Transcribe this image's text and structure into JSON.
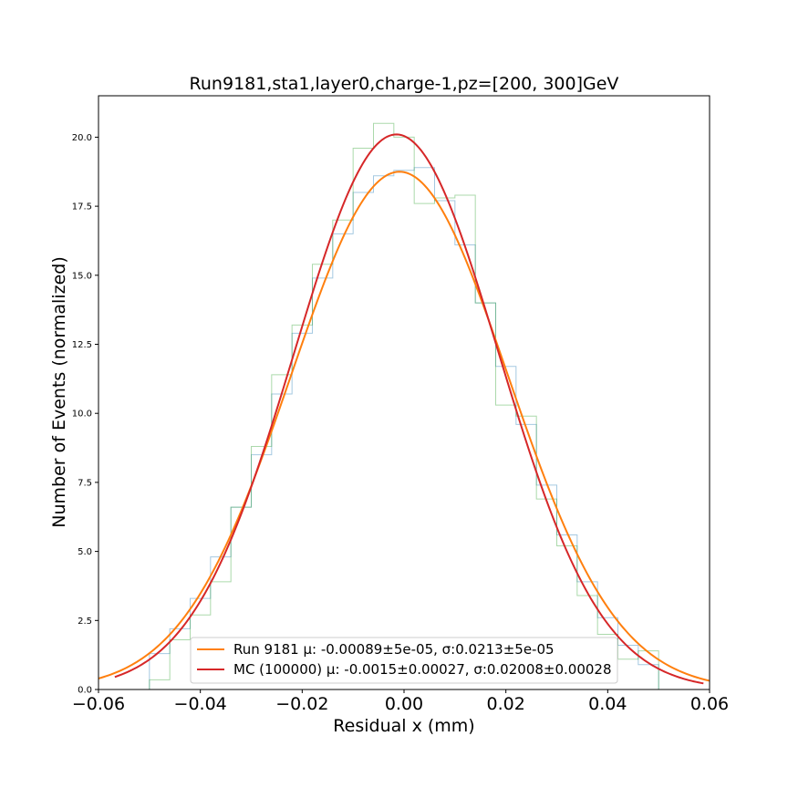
{
  "chart_data": {
    "type": "line",
    "title": "Run9181,sta1,layer0,charge-1,pz=[200, 300]GeV",
    "xlabel": "Residual x (mm)",
    "ylabel": "Number of Events (normalized)",
    "xlim": [
      -0.06,
      0.06
    ],
    "ylim": [
      0,
      21.5
    ],
    "x_ticks": [
      "−0.06",
      "−0.04",
      "−0.02",
      "0.00",
      "0.02",
      "0.04",
      "0.06"
    ],
    "x_tick_values": [
      -0.06,
      -0.04,
      -0.02,
      0.0,
      0.02,
      0.04,
      0.06
    ],
    "y_ticks": [
      "0.0",
      "2.5",
      "5.0",
      "7.5",
      "10.0",
      "12.5",
      "15.0",
      "17.5",
      "20.0"
    ],
    "y_tick_values": [
      0,
      2.5,
      5,
      7.5,
      10,
      12.5,
      15,
      17.5,
      20
    ],
    "grid": false,
    "legend": {
      "placement": "lower-center",
      "entries": [
        {
          "label": "Run 9181 μ: -0.00089±5e-05, σ:0.0213±5e-05",
          "color": "#ff7f0e"
        },
        {
          "label": "MC (100000) μ: -0.0015±0.00027, σ:0.02008±0.00028",
          "color": "#d62728"
        }
      ]
    },
    "fits": [
      {
        "name": "Run 9181",
        "kind": "gaussian",
        "mu": -0.00089,
        "sigma": 0.0213,
        "peak": 18.75,
        "x_range": [
          -0.06,
          0.06
        ],
        "color": "#ff7f0e"
      },
      {
        "name": "MC (100000)",
        "kind": "gaussian",
        "mu": -0.0015,
        "sigma": 0.02008,
        "peak": 20.1,
        "x_range": [
          -0.0568,
          0.0588
        ],
        "color": "#d62728"
      }
    ],
    "histograms": [
      {
        "kind": "step",
        "color": "#1f77b4",
        "bin_edges": [
          -0.05,
          -0.046,
          -0.042,
          -0.038,
          -0.034,
          -0.03,
          -0.026,
          -0.022,
          -0.018,
          -0.014,
          -0.01,
          -0.006,
          -0.002,
          0.002,
          0.006,
          0.01,
          0.014,
          0.018,
          0.022,
          0.026,
          0.03,
          0.034,
          0.038,
          0.042,
          0.046,
          0.05
        ],
        "counts": [
          1.3,
          2.2,
          3.3,
          4.8,
          6.6,
          8.5,
          10.7,
          12.9,
          14.9,
          16.5,
          18.0,
          18.6,
          18.8,
          18.9,
          17.7,
          16.1,
          14.0,
          11.7,
          9.6,
          7.4,
          5.6,
          3.9,
          2.6,
          1.6,
          0.9
        ]
      },
      {
        "kind": "step",
        "color": "#2ca02c",
        "bin_edges": [
          -0.05,
          -0.046,
          -0.042,
          -0.038,
          -0.034,
          -0.03,
          -0.026,
          -0.022,
          -0.018,
          -0.014,
          -0.01,
          -0.006,
          -0.002,
          0.002,
          0.006,
          0.01,
          0.014,
          0.018,
          0.022,
          0.026,
          0.03,
          0.034,
          0.038,
          0.042,
          0.046,
          0.05
        ],
        "counts": [
          0.35,
          1.8,
          2.7,
          3.9,
          6.6,
          8.8,
          11.4,
          13.2,
          15.4,
          17.0,
          19.6,
          20.5,
          20.0,
          17.6,
          17.8,
          17.9,
          14.0,
          10.3,
          9.9,
          6.9,
          5.2,
          3.4,
          2.0,
          1.1,
          1.4
        ]
      }
    ]
  }
}
